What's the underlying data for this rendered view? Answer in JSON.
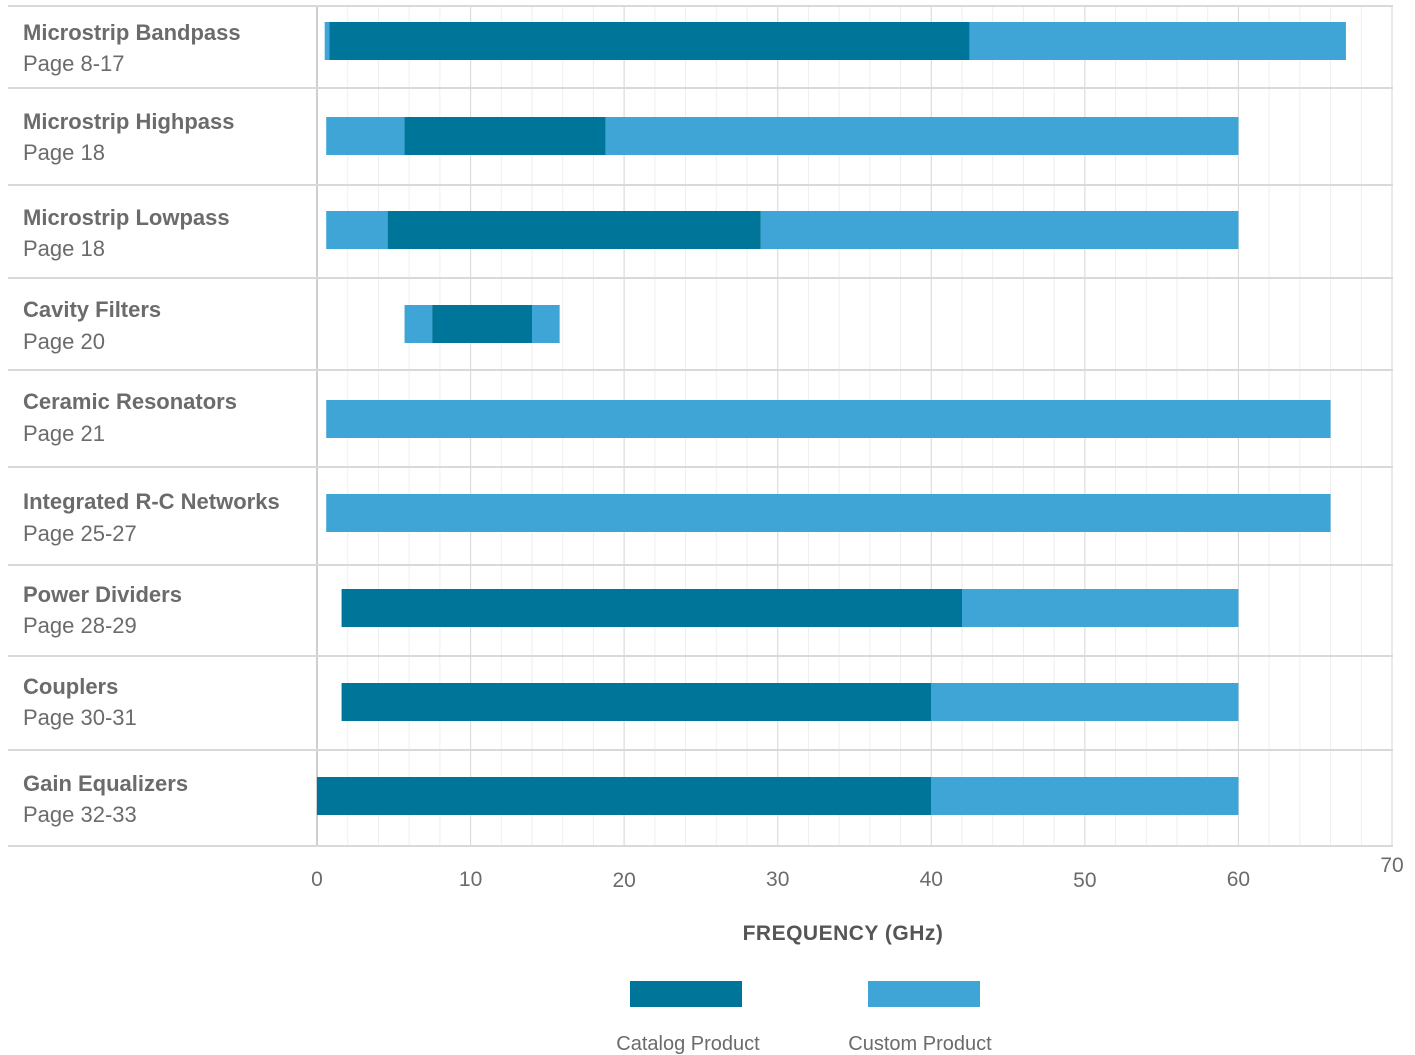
{
  "colors": {
    "catalog": "#00759a",
    "custom": "#3ea5d6",
    "grid_minor": "#eeeeee",
    "grid_major": "#dcdcdc",
    "row_border": "#d9d9d9",
    "text": "#6b6b6b"
  },
  "chart_data": {
    "type": "bar",
    "orientation": "horizontal",
    "stacked_ranges": true,
    "xlabel": "FREQUENCY (GHz)",
    "xlim": [
      0,
      70
    ],
    "x_ticks": [
      0,
      10,
      20,
      30,
      40,
      50,
      60,
      70
    ],
    "grid": true,
    "legend_position": "bottom",
    "categories": [
      {
        "name": "Microstrip Bandpass",
        "page": "Page 8-17",
        "segments": [
          {
            "series": "custom",
            "start": 0.5,
            "end": 0.8
          },
          {
            "series": "catalog",
            "start": 0.8,
            "end": 42.5
          },
          {
            "series": "custom",
            "start": 42.5,
            "end": 67
          }
        ]
      },
      {
        "name": "Microstrip Highpass",
        "page": "Page 18",
        "segments": [
          {
            "series": "custom",
            "start": 0.6,
            "end": 5.7
          },
          {
            "series": "catalog",
            "start": 5.7,
            "end": 18.8
          },
          {
            "series": "custom",
            "start": 18.8,
            "end": 60
          }
        ]
      },
      {
        "name": "Microstrip Lowpass",
        "page": "Page 18",
        "segments": [
          {
            "series": "custom",
            "start": 0.6,
            "end": 4.6
          },
          {
            "series": "catalog",
            "start": 4.6,
            "end": 28.9
          },
          {
            "series": "custom",
            "start": 28.9,
            "end": 60
          }
        ]
      },
      {
        "name": "Cavity Filters",
        "page": "Page 20",
        "segments": [
          {
            "series": "custom",
            "start": 5.7,
            "end": 7.5
          },
          {
            "series": "catalog",
            "start": 7.5,
            "end": 14
          },
          {
            "series": "custom",
            "start": 14,
            "end": 15.8
          }
        ]
      },
      {
        "name": "Ceramic Resonators",
        "page": "Page 21",
        "segments": [
          {
            "series": "custom",
            "start": 0.6,
            "end": 66
          }
        ]
      },
      {
        "name": "Integrated R-C Networks",
        "page": "Page 25-27",
        "segments": [
          {
            "series": "custom",
            "start": 0.6,
            "end": 66
          }
        ]
      },
      {
        "name": "Power Dividers",
        "page": "Page 28-29",
        "segments": [
          {
            "series": "catalog",
            "start": 1.6,
            "end": 42
          },
          {
            "series": "custom",
            "start": 42,
            "end": 60
          }
        ]
      },
      {
        "name": "Couplers",
        "page": "Page 30-31",
        "segments": [
          {
            "series": "catalog",
            "start": 1.6,
            "end": 40
          },
          {
            "series": "custom",
            "start": 40,
            "end": 60
          }
        ]
      },
      {
        "name": "Gain Equalizers",
        "page": "Page 32-33",
        "segments": [
          {
            "series": "catalog",
            "start": 0,
            "end": 40
          },
          {
            "series": "custom",
            "start": 40,
            "end": 60
          }
        ]
      }
    ],
    "series": [
      {
        "key": "catalog",
        "name": "Catalog Product"
      },
      {
        "key": "custom",
        "name": "Custom Product"
      }
    ]
  }
}
